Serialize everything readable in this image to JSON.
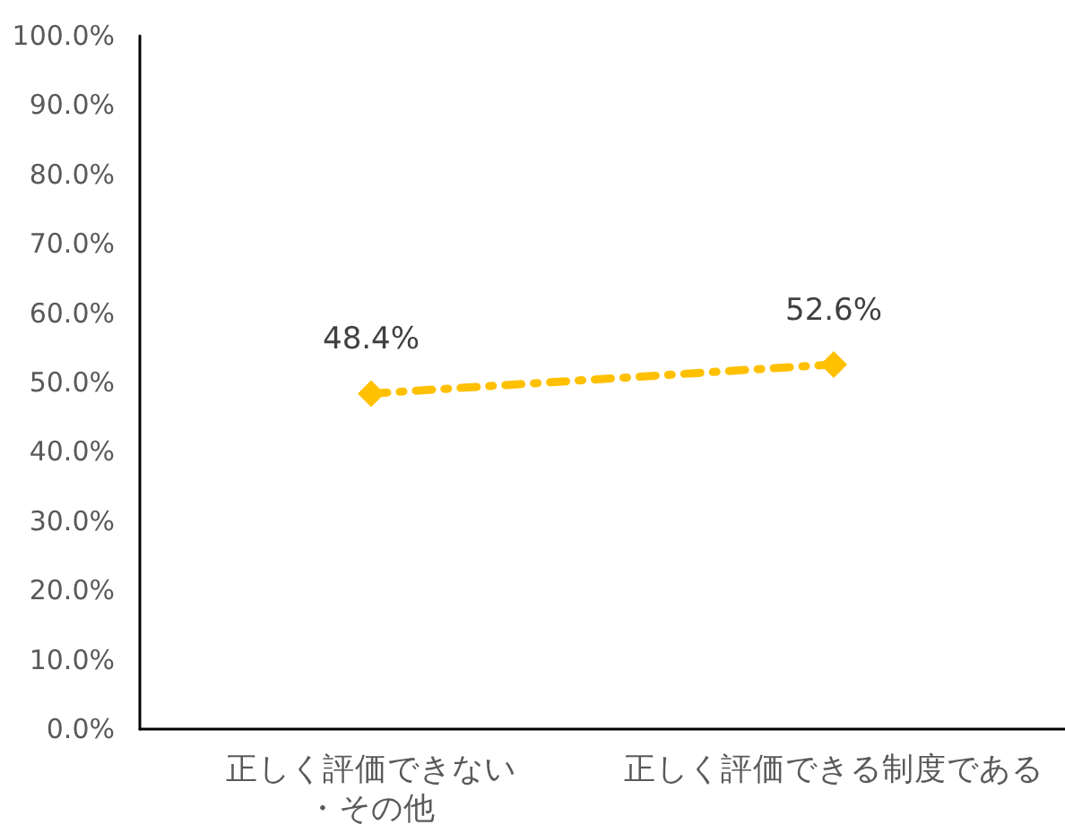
{
  "chart_data": {
    "type": "line",
    "categories": [
      "正しく評価できない・その他",
      "正しく評価できる制度である"
    ],
    "series": [
      {
        "color": "#ffc000",
        "values": [
          48.4,
          52.6
        ],
        "value_labels": [
          "48.4%",
          "52.6%"
        ]
      }
    ],
    "ylim": [
      0,
      100
    ],
    "yticks": [
      {
        "value": 0,
        "label": "0.0%"
      },
      {
        "value": 10,
        "label": "10.0%"
      },
      {
        "value": 20,
        "label": "20.0%"
      },
      {
        "value": 30,
        "label": "30.0%"
      },
      {
        "value": 40,
        "label": "40.0%"
      },
      {
        "value": 50,
        "label": "50.0%"
      },
      {
        "value": 60,
        "label": "60.0%"
      },
      {
        "value": 70,
        "label": "70.0%"
      },
      {
        "value": 80,
        "label": "80.0%"
      },
      {
        "value": 90,
        "label": "90.0%"
      },
      {
        "value": 100,
        "label": "100.0%"
      }
    ],
    "grid": false,
    "marker": "diamond",
    "line_style": "dashed"
  }
}
